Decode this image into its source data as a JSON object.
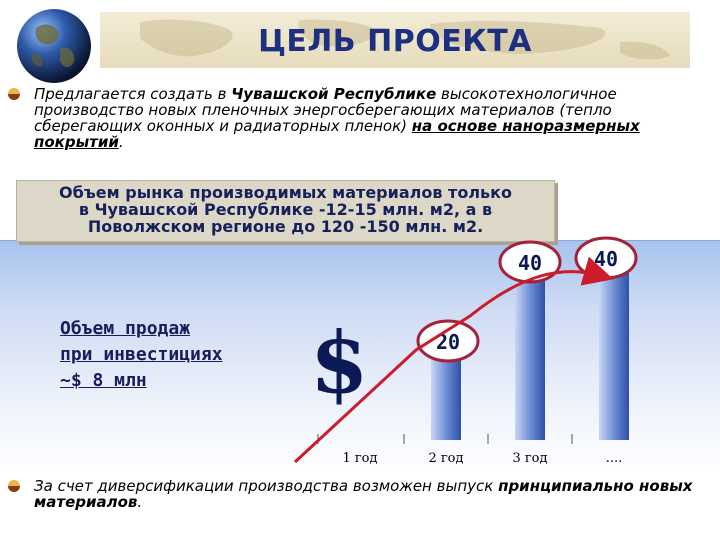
{
  "title": "ЦЕЛЬ ПРОЕКТА",
  "paragraph1": {
    "part1": "Предлагается создать в ",
    "region": "Чувашской  Республике",
    "part2": " высокотехнологичное производство новых пленочных энергосберегающих материалов (тепло сберегающих оконных и радиаторных пленок)  ",
    "emphasis": "на основе наноразмерных покрытий",
    "end": "."
  },
  "market_box": {
    "line1": "Объем рынка производимых материалов только",
    "line2": "в Чувашской Республике -12-15 млн. м2, а в",
    "line3": "Поволжском регионе до 120 -150 млн. м2."
  },
  "sales": {
    "line1": "Объем продаж",
    "line2": "при инвестициях",
    "line3": "~$ 8 млн"
  },
  "dollar_sign": "$",
  "paragraph2": {
    "part1": "За счет диверсификации производства возможен выпуск ",
    "emphasis": "принципиально новых материалов",
    "end": "."
  },
  "chart_data": {
    "type": "bar",
    "categories": [
      "1 год",
      "2 год",
      "3 год",
      "...."
    ],
    "values": [
      0,
      20,
      40,
      40
    ],
    "data_labels": [
      "",
      "20",
      "40",
      "40"
    ],
    "grid": false,
    "colors": {
      "bar": "#4a6fc2",
      "bar_light": "#c8d6f4",
      "arrow": "#cc1b2a",
      "label_border": "#a3223a"
    }
  }
}
